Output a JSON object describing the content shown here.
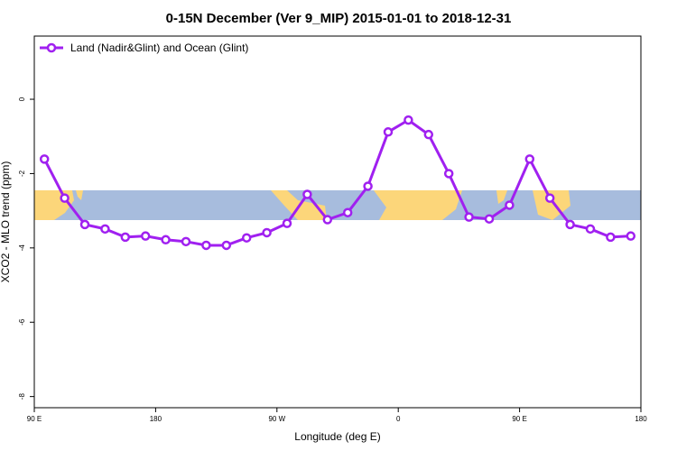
{
  "chart_data": {
    "type": "line",
    "title": "0-15N December (Ver 9_MIP)   2015-01-01 to 2018-12-31",
    "x_label": "Longitude (deg E)",
    "y_label": "XCO2 - MLO trend (ppm)",
    "xlim": [
      90,
      540
    ],
    "ylim": [
      -8.3,
      1.7
    ],
    "xticks": [
      {
        "value": 90,
        "label": "90 E"
      },
      {
        "value": 180,
        "label": "180"
      },
      {
        "value": 270,
        "label": "90 W"
      },
      {
        "value": 360,
        "label": "0"
      },
      {
        "value": 450,
        "label": "90 E"
      },
      {
        "value": 540,
        "label": "180"
      }
    ],
    "yticks": [
      0,
      -2,
      -4,
      -6,
      -8
    ],
    "legend_position": "top-left",
    "series": [
      {
        "name": "Land (Nadir&Glint) and Ocean (Glint)",
        "color": "#a020f0",
        "x": [
          97.5,
          112.5,
          127.5,
          142.5,
          157.5,
          172.5,
          187.5,
          202.5,
          217.5,
          232.5,
          247.5,
          262.5,
          277.5,
          292.5,
          307.5,
          322.5,
          337.5,
          352.5,
          367.5,
          382.5,
          397.5,
          412.5,
          427.5,
          442.5,
          457.5,
          472.5,
          487.5,
          502.5,
          517.5,
          532.5
        ],
        "values": [
          -1.61,
          -2.66,
          -3.37,
          -3.49,
          -3.71,
          -3.68,
          -3.78,
          -3.83,
          -3.93,
          -3.93,
          -3.73,
          -3.59,
          -3.34,
          -2.56,
          -3.24,
          -3.05,
          -2.34,
          -0.88,
          -0.56,
          -0.95,
          -2.0,
          -3.17,
          -3.22,
          -2.85,
          -1.61,
          -2.66,
          -3.37,
          -3.49,
          -3.71,
          -3.68
        ]
      }
    ]
  }
}
